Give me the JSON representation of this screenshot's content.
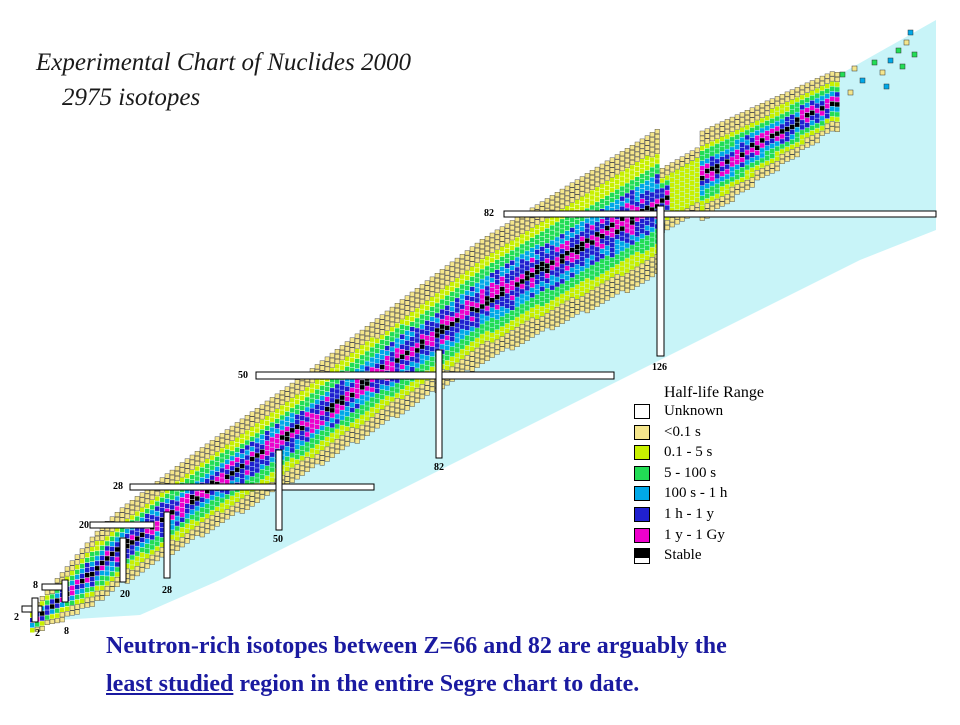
{
  "title": {
    "line1": "Experimental Chart of Nuclides 2000",
    "line2": "2975 isotopes"
  },
  "magic_numbers": {
    "proton": [
      "2",
      "8",
      "20",
      "28",
      "50",
      "82"
    ],
    "neutron": [
      "2",
      "8",
      "20",
      "28",
      "50",
      "82",
      "126"
    ]
  },
  "legend": {
    "title": "Half-life Range",
    "items": [
      {
        "label": "Unknown",
        "color": "#ffffff"
      },
      {
        "label": "<0.1 s",
        "color": "#f5e68c"
      },
      {
        "label": "0.1 - 5 s",
        "color": "#c8f000"
      },
      {
        "label": "5  - 100 s",
        "color": "#22dd55"
      },
      {
        "label": "100 s - 1 h",
        "color": "#00a8e8"
      },
      {
        "label": "1 h - 1 y",
        "color": "#2020d0"
      },
      {
        "label": "1 y - 1 Gy",
        "color": "#ee00cc"
      },
      {
        "label": "Stable",
        "color": "#000000"
      }
    ],
    "background_color": "#c8f4f8"
  },
  "caption": {
    "part1": "Neutron-rich isotopes between Z=66 and 82 are arguably the",
    "underlined": "least studied",
    "part2": " region in the entire Segre chart to date."
  }
}
